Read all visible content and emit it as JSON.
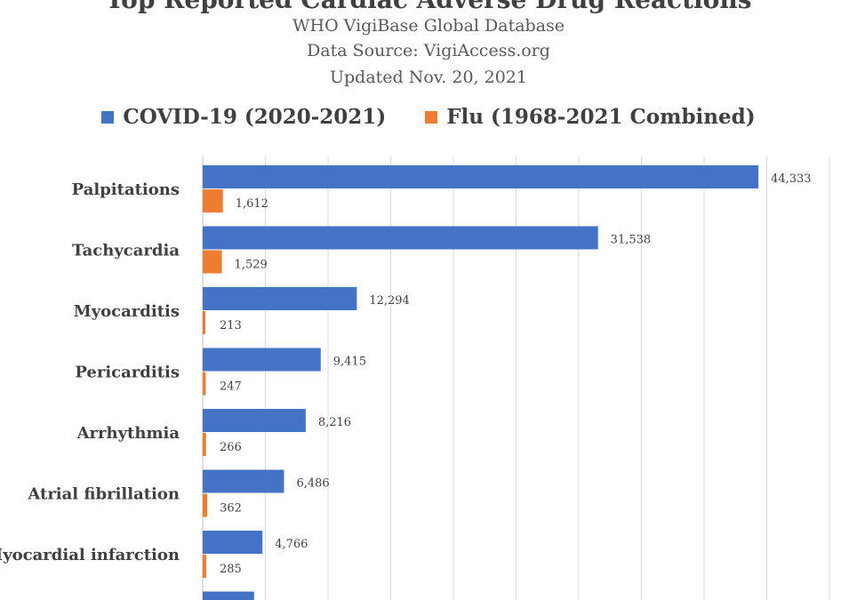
{
  "header": {
    "title": "Top Reported Cardiac Adverse Drug Reactions",
    "subtitle1": "WHO VigiBase Global Database",
    "subtitle2": "Data Source: VigiAccess.org",
    "subtitle3": "Updated Nov. 20, 2021"
  },
  "colors": {
    "covid": "#4472C4",
    "flu": "#ED7D31",
    "grid": "#d9d9d9"
  },
  "chart_data": {
    "type": "bar",
    "orientation": "horizontal",
    "title": "Top Reported Cardiac Adverse Drug Reactions",
    "legend_position": "top",
    "grid": true,
    "xlim": [
      0,
      50000
    ],
    "categories": [
      "Palpitations",
      "Tachycardia",
      "Myocarditis",
      "Pericarditis",
      "Arrhythmia",
      "Atrial fibrillation",
      "Myocardial infarction"
    ],
    "series": [
      {
        "name": "COVID-19 (2020-2021)",
        "values": [
          44333,
          31538,
          12294,
          9415,
          8216,
          6486,
          4766
        ],
        "labels": [
          "44,333",
          "31,538",
          "12,294",
          "9,415",
          "8,216",
          "6,486",
          "4,766"
        ]
      },
      {
        "name": "Flu (1968-2021 Combined)",
        "values": [
          1612,
          1529,
          213,
          247,
          266,
          362,
          285
        ],
        "labels": [
          "1,612",
          "1,529",
          "213",
          "247",
          "266",
          "362",
          "285"
        ]
      }
    ],
    "partial_category": {
      "covid_value": 4100
    }
  }
}
